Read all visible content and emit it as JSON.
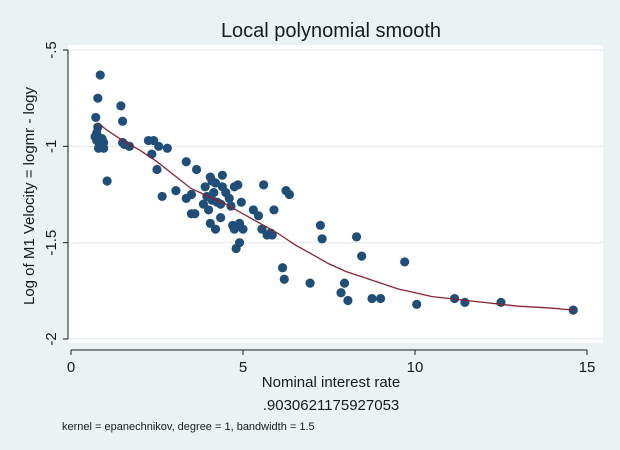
{
  "chart_data": {
    "type": "scatter",
    "title": "Local polynomial smooth",
    "xlabel": "Nominal interest rate",
    "ylabel": "Log of M1 Velocity = logmr - logy",
    "subtitle_value": ".9030621175927053",
    "note": "kernel = epanechnikov, degree = 1, bandwidth = 1.5",
    "xlim": [
      0,
      15
    ],
    "ylim": [
      -2,
      -0.5
    ],
    "x_ticks": [
      0,
      5,
      10,
      15
    ],
    "x_tick_labels": [
      "0",
      "5",
      "10",
      "15"
    ],
    "y_ticks": [
      -0.5,
      -1,
      -1.5,
      -2
    ],
    "y_tick_labels": [
      "-.5",
      "-1",
      "-1.5",
      "-2"
    ],
    "grid": true,
    "colors": {
      "background": "#eaf2f3",
      "plot_area": "#ffffff",
      "points": "#1f4e79",
      "smooth_line": "#8b2332",
      "grid": "#e2e8e8"
    },
    "series": [
      {
        "kind": "points",
        "x": [
          0.85,
          0.78,
          0.72,
          0.75,
          0.78,
          0.9,
          0.95,
          0.8,
          0.88,
          0.95,
          0.8,
          0.75,
          0.7,
          1.05,
          1.45,
          1.5,
          1.5,
          1.55,
          1.7,
          2.25,
          2.4,
          2.35,
          2.55,
          2.8,
          2.5,
          2.65,
          3.05,
          3.35,
          3.35,
          3.5,
          3.5,
          3.85,
          3.65,
          3.9,
          3.6,
          3.95,
          4.05,
          4.1,
          4.2,
          4.1,
          4.4,
          4.4,
          4.5,
          4.15,
          4.25,
          4.35,
          4.05,
          4.2,
          4.0,
          4.35,
          4.6,
          4.75,
          4.85,
          4.65,
          4.7,
          4.95,
          4.8,
          4.9,
          4.9,
          4.75,
          5.0,
          5.3,
          5.45,
          5.55,
          5.7,
          5.85,
          5.8,
          5.9,
          5.6,
          6.25,
          6.35,
          6.15,
          6.2,
          7.25,
          7.3,
          6.95,
          7.95,
          8.05,
          8.3,
          8.45,
          7.85,
          8.75,
          9.0,
          9.7,
          10.05,
          11.15,
          11.45,
          12.5,
          14.6
        ],
        "y": [
          -0.63,
          -0.75,
          -0.85,
          -0.93,
          -0.9,
          -0.96,
          -0.98,
          -1.01,
          -1.0,
          -1.01,
          -0.97,
          -0.97,
          -0.95,
          -1.18,
          -0.79,
          -0.87,
          -0.98,
          -0.99,
          -1.0,
          -0.97,
          -0.97,
          -1.04,
          -1.0,
          -1.01,
          -1.12,
          -1.26,
          -1.23,
          -1.08,
          -1.27,
          -1.25,
          -1.35,
          -1.3,
          -1.12,
          -1.21,
          -1.35,
          -1.26,
          -1.16,
          -1.18,
          -1.19,
          -1.28,
          -1.15,
          -1.21,
          -1.24,
          -1.24,
          -1.29,
          -1.3,
          -1.4,
          -1.43,
          -1.33,
          -1.37,
          -1.27,
          -1.21,
          -1.2,
          -1.31,
          -1.41,
          -1.29,
          -1.53,
          -1.5,
          -1.4,
          -1.43,
          -1.43,
          -1.33,
          -1.36,
          -1.43,
          -1.46,
          -1.46,
          -1.45,
          -1.33,
          -1.2,
          -1.23,
          -1.25,
          -1.63,
          -1.69,
          -1.41,
          -1.48,
          -1.71,
          -1.71,
          -1.8,
          -1.47,
          -1.57,
          -1.76,
          -1.79,
          -1.79,
          -1.6,
          -1.82,
          -1.79,
          -1.81,
          -1.81,
          -1.85
        ]
      },
      {
        "kind": "line",
        "x": [
          0.8,
          1,
          1.5,
          2,
          2.5,
          3,
          3.5,
          4,
          4.5,
          5,
          5.5,
          6,
          6.5,
          7,
          7.5,
          8,
          8.5,
          9,
          9.5,
          10,
          10.5,
          11,
          11.5,
          12,
          12.5,
          13,
          13.5,
          14,
          14.6
        ],
        "y": [
          -0.88,
          -0.91,
          -0.97,
          -1.02,
          -1.08,
          -1.15,
          -1.22,
          -1.26,
          -1.3,
          -1.35,
          -1.4,
          -1.45,
          -1.51,
          -1.56,
          -1.61,
          -1.65,
          -1.68,
          -1.71,
          -1.74,
          -1.76,
          -1.78,
          -1.79,
          -1.8,
          -1.81,
          -1.82,
          -1.83,
          -1.835,
          -1.84,
          -1.85
        ]
      }
    ]
  }
}
